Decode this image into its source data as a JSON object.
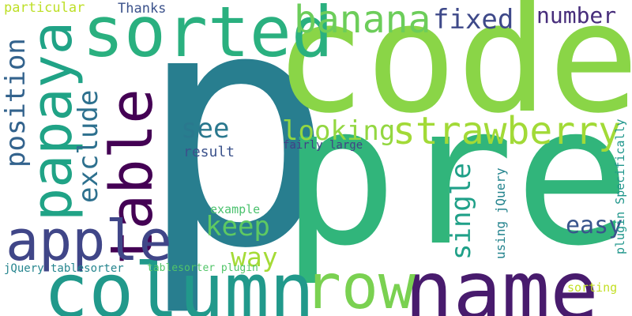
{
  "cloud": {
    "words": [
      {
        "id": "p",
        "text": "p",
        "color": "#287e8f",
        "rotated": false
      },
      {
        "id": "pre",
        "text": "pre",
        "color": "#31b57b",
        "rotated": false
      },
      {
        "id": "code",
        "text": "code",
        "color": "#8ad547",
        "rotated": false
      },
      {
        "id": "column",
        "text": "column",
        "color": "#21998b",
        "rotated": false
      },
      {
        "id": "name",
        "text": "name",
        "color": "#481b6d",
        "rotated": false
      },
      {
        "id": "table",
        "text": "table",
        "color": "#440154",
        "rotated": true
      },
      {
        "id": "sorted",
        "text": "sorted",
        "color": "#2ab07f",
        "rotated": false
      },
      {
        "id": "papaya",
        "text": "papaya",
        "color": "#20a386",
        "rotated": true
      },
      {
        "id": "apple",
        "text": "apple",
        "color": "#404688",
        "rotated": false
      },
      {
        "id": "row",
        "text": "row",
        "color": "#7ad151",
        "rotated": false
      },
      {
        "id": "strawberry",
        "text": "strawberry",
        "color": "#a2da37",
        "rotated": false
      },
      {
        "id": "banana",
        "text": "banana",
        "color": "#6ccd5a",
        "rotated": false
      },
      {
        "id": "position",
        "text": "position",
        "color": "#33638d",
        "rotated": true
      },
      {
        "id": "exclude",
        "text": "exclude",
        "color": "#2d708e",
        "rotated": true
      },
      {
        "id": "see",
        "text": "see",
        "color": "#2a788e",
        "rotated": false
      },
      {
        "id": "looking",
        "text": "looking",
        "color": "#93d741",
        "rotated": false
      },
      {
        "id": "fixed",
        "text": "fixed",
        "color": "#3e4989",
        "rotated": false
      },
      {
        "id": "number",
        "text": "number",
        "color": "#472d7b",
        "rotated": false
      },
      {
        "id": "keep",
        "text": "keep",
        "color": "#5ec962",
        "rotated": false
      },
      {
        "id": "way",
        "text": "way",
        "color": "#a5db36",
        "rotated": false
      },
      {
        "id": "single",
        "text": "single",
        "color": "#1fa088",
        "rotated": true
      },
      {
        "id": "easy",
        "text": "easy",
        "color": "#39558c",
        "rotated": false
      },
      {
        "id": "particular",
        "text": "particular",
        "color": "#bddf26",
        "rotated": false
      },
      {
        "id": "thanks",
        "text": "Thanks",
        "color": "#3b528b",
        "rotated": false
      },
      {
        "id": "result",
        "text": "result",
        "color": "#3b528b",
        "rotated": false
      },
      {
        "id": "fairly-large",
        "text": "fairly large",
        "color": "#424086",
        "rotated": false
      },
      {
        "id": "example",
        "text": "example",
        "color": "#4ac16d",
        "rotated": false
      },
      {
        "id": "using-jquery",
        "text": "using jQuery",
        "color": "#25848e",
        "rotated": true
      },
      {
        "id": "plugin-specifically",
        "text": "plugin Specifically",
        "color": "#1f968b",
        "rotated": true
      },
      {
        "id": "jquery-tablesorter",
        "text": "jQuery tablesorter",
        "color": "#25858e",
        "rotated": false
      },
      {
        "id": "tablesorter-plugin",
        "text": "tablesorter plugin",
        "color": "#52c569",
        "rotated": false
      },
      {
        "id": "sorting",
        "text": "sorting",
        "color": "#c2df23",
        "rotated": false
      }
    ]
  }
}
